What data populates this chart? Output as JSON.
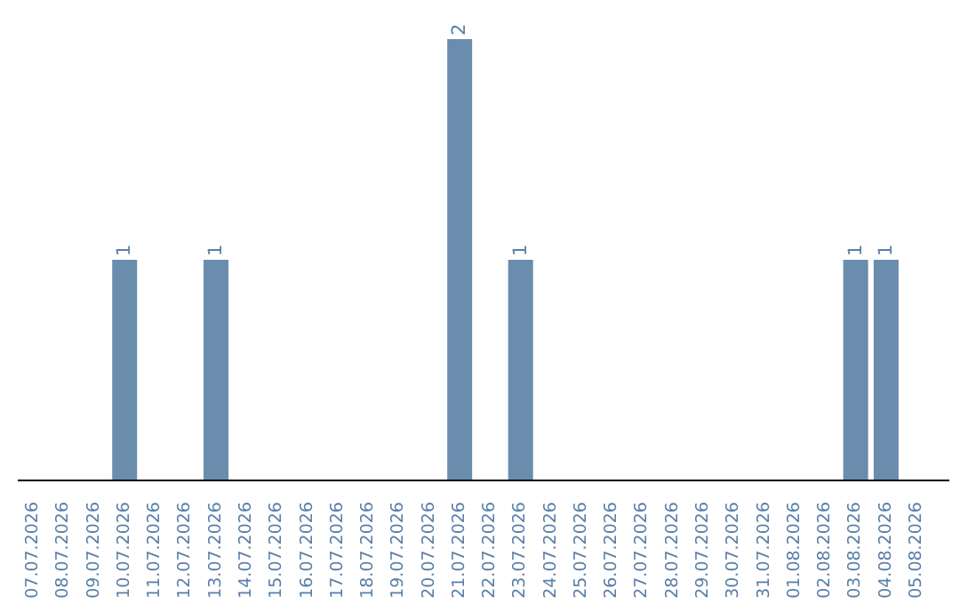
{
  "chart_data": {
    "type": "bar",
    "categories": [
      "07.07.2026",
      "08.07.2026",
      "09.07.2026",
      "10.07.2026",
      "11.07.2026",
      "12.07.2026",
      "13.07.2026",
      "14.07.2026",
      "15.07.2026",
      "16.07.2026",
      "17.07.2026",
      "18.07.2026",
      "19.07.2026",
      "20.07.2026",
      "21.07.2026",
      "22.07.2026",
      "23.07.2026",
      "24.07.2026",
      "25.07.2026",
      "26.07.2026",
      "27.07.2026",
      "28.07.2026",
      "29.07.2026",
      "30.07.2026",
      "31.07.2026",
      "01.08.2026",
      "02.08.2026",
      "03.08.2026",
      "04.08.2026",
      "05.08.2026"
    ],
    "values": [
      0,
      0,
      0,
      1,
      0,
      0,
      1,
      0,
      0,
      0,
      0,
      0,
      0,
      0,
      2,
      0,
      1,
      0,
      0,
      0,
      0,
      0,
      0,
      0,
      0,
      0,
      0,
      1,
      1,
      0
    ],
    "value_labels": [
      null,
      null,
      null,
      "1",
      null,
      null,
      "1",
      null,
      null,
      null,
      null,
      null,
      null,
      null,
      "2",
      null,
      "1",
      null,
      null,
      null,
      null,
      null,
      null,
      null,
      null,
      null,
      null,
      "1",
      "1",
      null
    ],
    "color": "#6a8cad",
    "grid": false,
    "legend": false,
    "tick_labels": "x"
  }
}
